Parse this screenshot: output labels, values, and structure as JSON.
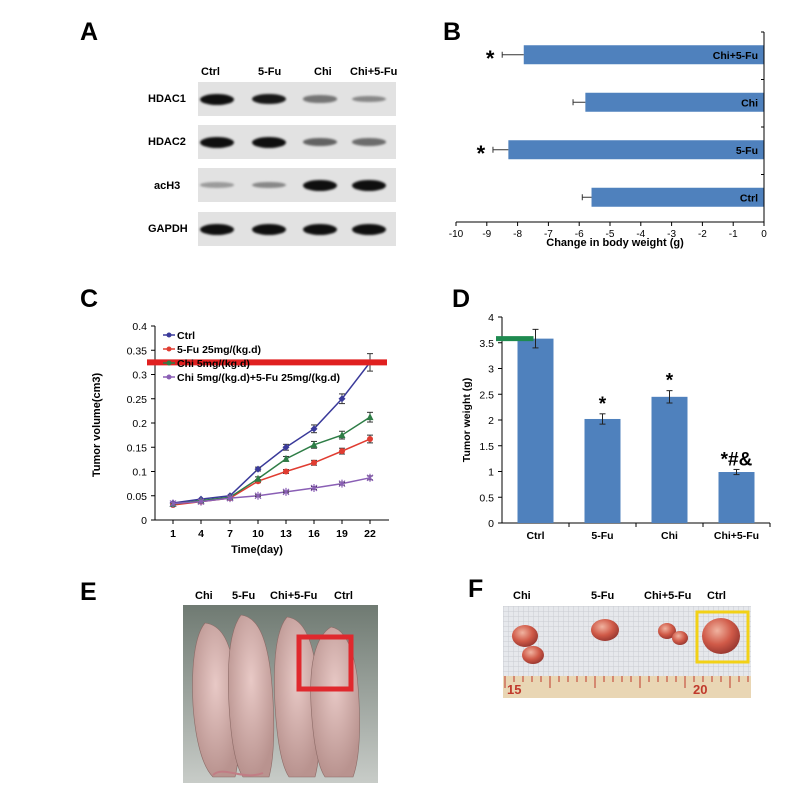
{
  "panels": {
    "a": {
      "letter": "A",
      "columns": [
        "Ctrl",
        "5-Fu",
        "Chi",
        "Chi+5-Fu"
      ],
      "rows": [
        {
          "label": "HDAC1",
          "intensity": [
            1.0,
            0.95,
            0.45,
            0.35
          ]
        },
        {
          "label": "HDAC2",
          "intensity": [
            1.0,
            1.0,
            0.55,
            0.5
          ]
        },
        {
          "label": "acH3",
          "intensity": [
            0.25,
            0.35,
            1.0,
            1.0
          ]
        },
        {
          "label": "GAPDH",
          "intensity": [
            1.0,
            1.0,
            1.0,
            1.0
          ]
        }
      ]
    },
    "b": {
      "letter": "B",
      "significance": "*"
    },
    "c": {
      "letter": "C"
    },
    "d": {
      "letter": "D"
    },
    "e": {
      "letter": "E",
      "labels": [
        "Chi",
        "5-Fu",
        "Chi+5-Fu",
        "Ctrl"
      ]
    },
    "f": {
      "letter": "F",
      "labels": [
        "Chi",
        "5-Fu",
        "Chi+5-Fu",
        "Ctrl"
      ],
      "ruler_marks": [
        "15",
        "20"
      ]
    }
  },
  "chart_data": [
    {
      "id": "B",
      "type": "bar",
      "orientation": "horizontal",
      "categories": [
        "Chi+5-Fu",
        "Chi",
        "5-Fu",
        "Ctrl"
      ],
      "values": [
        -7.8,
        -5.8,
        -8.3,
        -5.6
      ],
      "errors": [
        0.7,
        0.4,
        0.5,
        0.3
      ],
      "significance": [
        "*",
        "",
        "*",
        ""
      ],
      "xlabel": "Change in body weight (g)",
      "xlim": [
        -10,
        0
      ],
      "xticks": [
        -10,
        -9,
        -8,
        -7,
        -6,
        -5,
        -4,
        -3,
        -2,
        -1,
        0
      ],
      "color": "#4f81bd"
    },
    {
      "id": "C",
      "type": "line",
      "x": [
        1,
        4,
        7,
        10,
        13,
        16,
        19,
        22
      ],
      "series": [
        {
          "name": "Ctrl",
          "color": "#3a3a9a",
          "marker": "diamond",
          "values": [
            0.035,
            0.043,
            0.05,
            0.105,
            0.15,
            0.188,
            0.25,
            0.325
          ],
          "errors": [
            0,
            0,
            0,
            0.004,
            0.006,
            0.008,
            0.01,
            0.018
          ]
        },
        {
          "name": "5-Fu 25mg/(kg.d)",
          "color": "#e03c31",
          "marker": "circle",
          "values": [
            0.031,
            0.038,
            0.045,
            0.08,
            0.1,
            0.118,
            0.142,
            0.167
          ],
          "errors": [
            0,
            0,
            0,
            0.003,
            0.004,
            0.005,
            0.006,
            0.008
          ]
        },
        {
          "name": "Chi 5mg/(kg.d)",
          "color": "#2e7d46",
          "marker": "triangle",
          "values": [
            0.033,
            0.04,
            0.047,
            0.085,
            0.126,
            0.155,
            0.175,
            0.212
          ],
          "errors": [
            0,
            0,
            0,
            0.004,
            0.005,
            0.007,
            0.008,
            0.01
          ]
        },
        {
          "name": "Chi 5mg/(kg.d)+5-Fu 25mg/(kg.d)",
          "color": "#8a5fb5",
          "marker": "star",
          "values": [
            0.034,
            0.038,
            0.045,
            0.05,
            0.058,
            0.066,
            0.075,
            0.087
          ],
          "errors": [
            0,
            0,
            0,
            0.002,
            0.002,
            0.003,
            0.003,
            0.004
          ]
        }
      ],
      "xlabel": "Time(day)",
      "ylabel": "Tumor volume(cm3)",
      "ylim": [
        0,
        0.4
      ],
      "yticks": [
        0,
        0.05,
        0.1,
        0.15,
        0.2,
        0.25,
        0.3,
        0.35,
        0.4
      ],
      "annotation_line_y": 0.325,
      "annotation_line_color": "#e02020"
    },
    {
      "id": "D",
      "type": "bar",
      "categories": [
        "Ctrl",
        "5-Fu",
        "Chi",
        "Chi+5-Fu"
      ],
      "values": [
        3.58,
        2.02,
        2.45,
        0.99
      ],
      "errors": [
        0.18,
        0.1,
        0.12,
        0.05
      ],
      "significance": [
        "",
        "*",
        "*",
        "*#&"
      ],
      "ylabel": "Tumor weight (g)",
      "ylim": [
        0,
        4
      ],
      "yticks": [
        0,
        0.5,
        1,
        1.5,
        2,
        2.5,
        3,
        3.5,
        4
      ],
      "color": "#4f81bd",
      "annotation_line_color": "#1e8a4f"
    }
  ]
}
